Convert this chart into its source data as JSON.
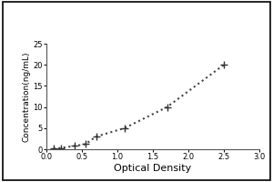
{
  "x_data": [
    0.1,
    0.2,
    0.4,
    0.55,
    0.7,
    1.1,
    1.7,
    2.5
  ],
  "y_data": [
    0.15,
    0.3,
    0.8,
    1.2,
    3.0,
    5.0,
    10.0,
    20.0
  ],
  "xlabel": "Optical Density",
  "ylabel": "Concentration(ng/mL)",
  "xlim": [
    0,
    3
  ],
  "ylim": [
    0,
    25
  ],
  "xticks": [
    0,
    0.5,
    1.0,
    1.5,
    2.0,
    2.5,
    3.0
  ],
  "yticks": [
    0,
    5,
    10,
    15,
    20,
    25
  ],
  "marker": "+",
  "marker_color": "#333333",
  "line_style": "dotted",
  "line_color": "#444444",
  "background_color": "#ffffff",
  "marker_size": 6,
  "line_width": 1.5,
  "tick_fontsize": 6,
  "xlabel_fontsize": 8,
  "ylabel_fontsize": 6.5
}
